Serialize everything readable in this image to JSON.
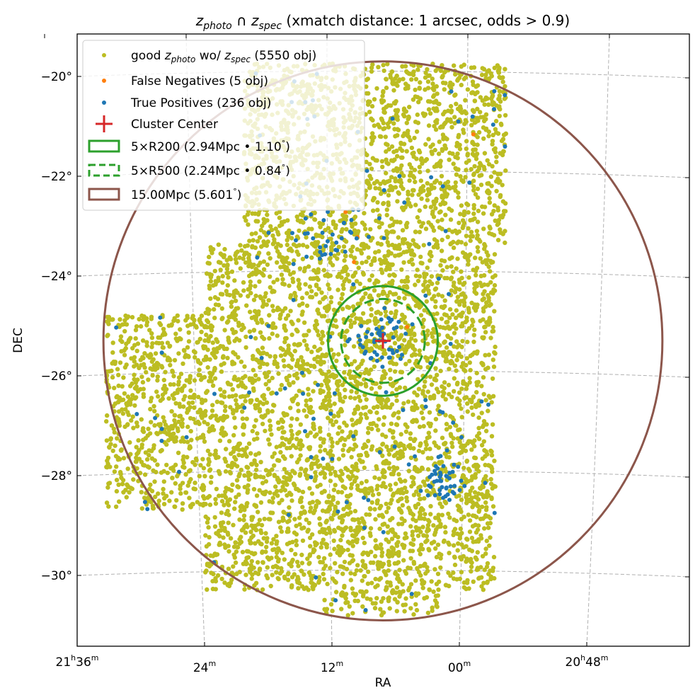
{
  "chart_data": {
    "type": "scatter",
    "title": {
      "z1": "z",
      "sub1": "photo",
      "mid": " ∩ ",
      "z2": "z",
      "sub2": "spec",
      "rest": " (xmatch distance: 1 arcsec, odds > 0.9)"
    },
    "xlabel": "RA",
    "ylabel": "DEC",
    "xticks": [
      {
        "ra_deg": 324,
        "h": "21",
        "hs": "h",
        "m": "36",
        "ms": "m"
      },
      {
        "ra_deg": 321,
        "h": "",
        "hs": "",
        "m": "24",
        "ms": "m"
      },
      {
        "ra_deg": 318,
        "h": "",
        "hs": "",
        "m": "12",
        "ms": "m"
      },
      {
        "ra_deg": 315,
        "h": "",
        "hs": "",
        "m": "00",
        "ms": "m"
      },
      {
        "ra_deg": 312,
        "h": "20",
        "hs": "h",
        "m": "48",
        "ms": "m"
      }
    ],
    "yticks": [
      {
        "dec_deg": -20,
        "label": "−20°"
      },
      {
        "dec_deg": -22,
        "label": "−22°"
      },
      {
        "dec_deg": -24,
        "label": "−24°"
      },
      {
        "dec_deg": -26,
        "label": "−26°"
      },
      {
        "dec_deg": -28,
        "label": "−28°"
      },
      {
        "dec_deg": -30,
        "label": "−30°"
      }
    ],
    "grid": true,
    "legend_position": "upper-left",
    "cluster_center": {
      "ra": 316.8,
      "dec": -25.3
    },
    "series": [
      {
        "name": "good_zphoto",
        "label_pre": "good ",
        "label_z1": "z",
        "label_sub1": "photo",
        "label_mid": " wo/ ",
        "label_z2": "z",
        "label_sub2": "spec",
        "label_post": " (5550 obj)",
        "count": 5550,
        "color": "#bcbd22",
        "footprint": [
          {
            "ra": [
              313.9,
              320.07
            ],
            "dec": [
              -23.43,
              -19.74
            ]
          },
          {
            "ra": [
              314.15,
              320.98
            ],
            "dec": [
              -30.3,
              -23.36
            ]
          },
          {
            "ra": [
              320.98,
              323.32
            ],
            "dec": [
              -28.68,
              -24.78
            ]
          },
          {
            "ra": [
              315.5,
              318.2
            ],
            "dec": [
              -30.8,
              -30.3
            ]
          }
        ]
      },
      {
        "name": "false_negatives",
        "label": "False Negatives (5 obj)",
        "count": 5,
        "color": "#ff7f0e",
        "points": [
          [
            314.67,
            -21.16
          ],
          [
            317.4,
            -23.22
          ],
          [
            316.23,
            -25.02
          ],
          [
            317.48,
            -23.72
          ],
          [
            317.68,
            -22.72
          ]
        ]
      },
      {
        "name": "true_positives",
        "label": "True Positives (236 obj)",
        "count": 236,
        "color": "#1f77b4",
        "groups": [
          {
            "ra": 316.8,
            "dec": -25.3,
            "sigma": 0.3,
            "n": 50
          },
          {
            "ra": 315.45,
            "dec": -28.11,
            "sigma": 0.22,
            "n": 45
          },
          {
            "ra": 318.02,
            "dec": -23.15,
            "sigma": 0.28,
            "n": 30
          },
          {
            "scattered": true,
            "n": 111
          }
        ]
      }
    ],
    "markers": [
      {
        "name": "cluster-center",
        "label": "Cluster Center",
        "color": "#d62728"
      }
    ],
    "circles": [
      {
        "label": "5×R200 (2.94Mpc • 1.10$^\\circ$)",
        "text": "5×R200 (2.94Mpc • 1.10",
        "radius_deg": 1.1,
        "color": "#2ca02c",
        "style": "solid"
      },
      {
        "label": "5×R500 (2.24Mpc • 0.84$^\\circ$)",
        "text": "5×R500 (2.24Mpc • 0.84",
        "radius_deg": 0.84,
        "color": "#2ca02c",
        "style": "dashed"
      },
      {
        "label": "15.00Mpc (5.601$^\\circ$)",
        "text": "15.00Mpc (5.601",
        "radius_deg": 5.601,
        "color": "#8c564b",
        "style": "solid"
      }
    ],
    "degree_suffix": "°",
    "close_paren": ")"
  }
}
